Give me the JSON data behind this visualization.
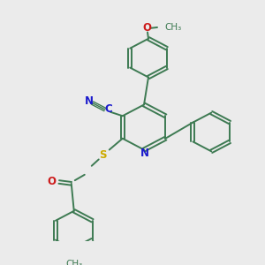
{
  "bg_color": "#ebebeb",
  "bond_color": "#3d7a52",
  "atom_colors": {
    "N": "#1a1acc",
    "O": "#cc1a1a",
    "S": "#ccaa00",
    "C": "#1a1acc"
  },
  "figsize": [
    3.0,
    3.0
  ],
  "dpi": 100
}
